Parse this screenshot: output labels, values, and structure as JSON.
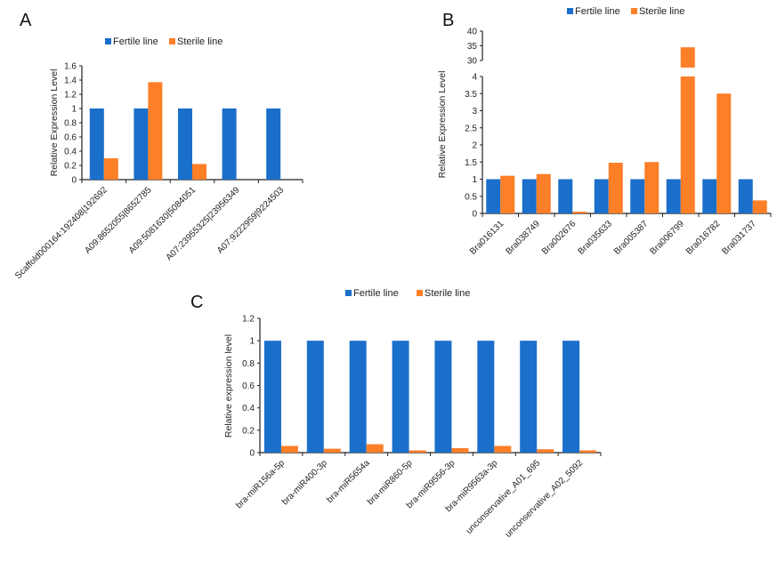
{
  "colors": {
    "fertile": "#1a6fca",
    "sterile": "#fd7f28"
  },
  "chart_data": [
    {
      "panel": "A",
      "type": "bar",
      "ylabel": "Relative Expression Level",
      "ylim": [
        0,
        1.6
      ],
      "yticks": [
        "0",
        "0.2",
        "0.4",
        "0.6",
        "0.8",
        "1",
        "1.2",
        "1.4",
        "1.6"
      ],
      "legend": "top",
      "categories": [
        "Scaffold000164:192408|192692",
        "A09:8652055|8652785",
        "A09:5081630|5084051",
        "A07:23955325|23956349",
        "A07:9222959|9224503"
      ],
      "series": [
        {
          "name": "Fertile line",
          "values": [
            1,
            1,
            1,
            1,
            1
          ]
        },
        {
          "name": "Sterile line",
          "values": [
            0.3,
            1.37,
            0.22,
            0,
            0
          ]
        }
      ]
    },
    {
      "panel": "B",
      "type": "bar",
      "ylabel": "Relative Expression Level",
      "ylim": [
        0,
        40
      ],
      "axis_break": [
        4,
        30
      ],
      "yticks": [
        "0",
        "0.5",
        "1",
        "1.5",
        "2",
        "2.5",
        "3",
        "3.5",
        "4",
        "30",
        "35",
        "40"
      ],
      "legend": "top",
      "categories": [
        "Bra016131",
        "Bra038749",
        "Bra002676",
        "Bra035633",
        "Bra005387",
        "Bra006799",
        "Bra016782",
        "Bra031737"
      ],
      "series": [
        {
          "name": "Fertile line",
          "values": [
            1,
            1,
            1,
            1,
            1,
            1,
            1,
            1
          ]
        },
        {
          "name": "Sterile line",
          "values": [
            1.1,
            1.15,
            0.05,
            1.48,
            1.5,
            34.5,
            3.5,
            0.38
          ]
        }
      ]
    },
    {
      "panel": "C",
      "type": "bar",
      "ylabel": "Relative expression level",
      "ylim": [
        0,
        1.2
      ],
      "yticks": [
        "0",
        "0.2",
        "0.4",
        "0.6",
        "0.8",
        "1",
        "1.2"
      ],
      "legend": "top",
      "categories": [
        "bra-miR156a-5p",
        "bra-miR400-3p",
        "bra-miR5654a",
        "bra-miR860-5p",
        "bra-miR9556-3p",
        "bra-miR9563a-3p",
        "unconservative_A01_695",
        "unconservative_A02_5092"
      ],
      "series": [
        {
          "name": "Fertile line",
          "values": [
            1,
            1,
            1,
            1,
            1,
            1,
            1,
            1
          ]
        },
        {
          "name": "Sterile line",
          "values": [
            0.06,
            0.035,
            0.075,
            0.02,
            0.04,
            0.06,
            0.03,
            0.02
          ]
        }
      ]
    }
  ]
}
